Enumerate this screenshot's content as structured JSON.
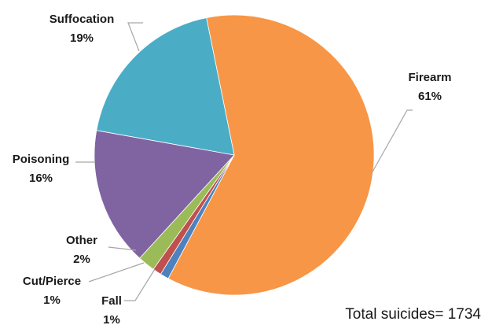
{
  "chart_data": {
    "type": "pie",
    "title": "",
    "slices": [
      {
        "label": "Firearm",
        "percent_label": "61%",
        "value": 61,
        "color": "#F79646"
      },
      {
        "label": "Fall",
        "percent_label": "1%",
        "value": 1,
        "color": "#4F81BD"
      },
      {
        "label": "Cut/Pierce",
        "percent_label": "1%",
        "value": 1,
        "color": "#C0504D"
      },
      {
        "label": "Other",
        "percent_label": "2%",
        "value": 2,
        "color": "#9BBB59"
      },
      {
        "label": "Poisoning",
        "percent_label": "16%",
        "value": 16,
        "color": "#8064A2"
      },
      {
        "label": "Suffocation",
        "percent_label": "19%",
        "value": 19,
        "color": "#4BACC6"
      }
    ],
    "annotation": "Total suicides= 1734",
    "legend": "none"
  }
}
